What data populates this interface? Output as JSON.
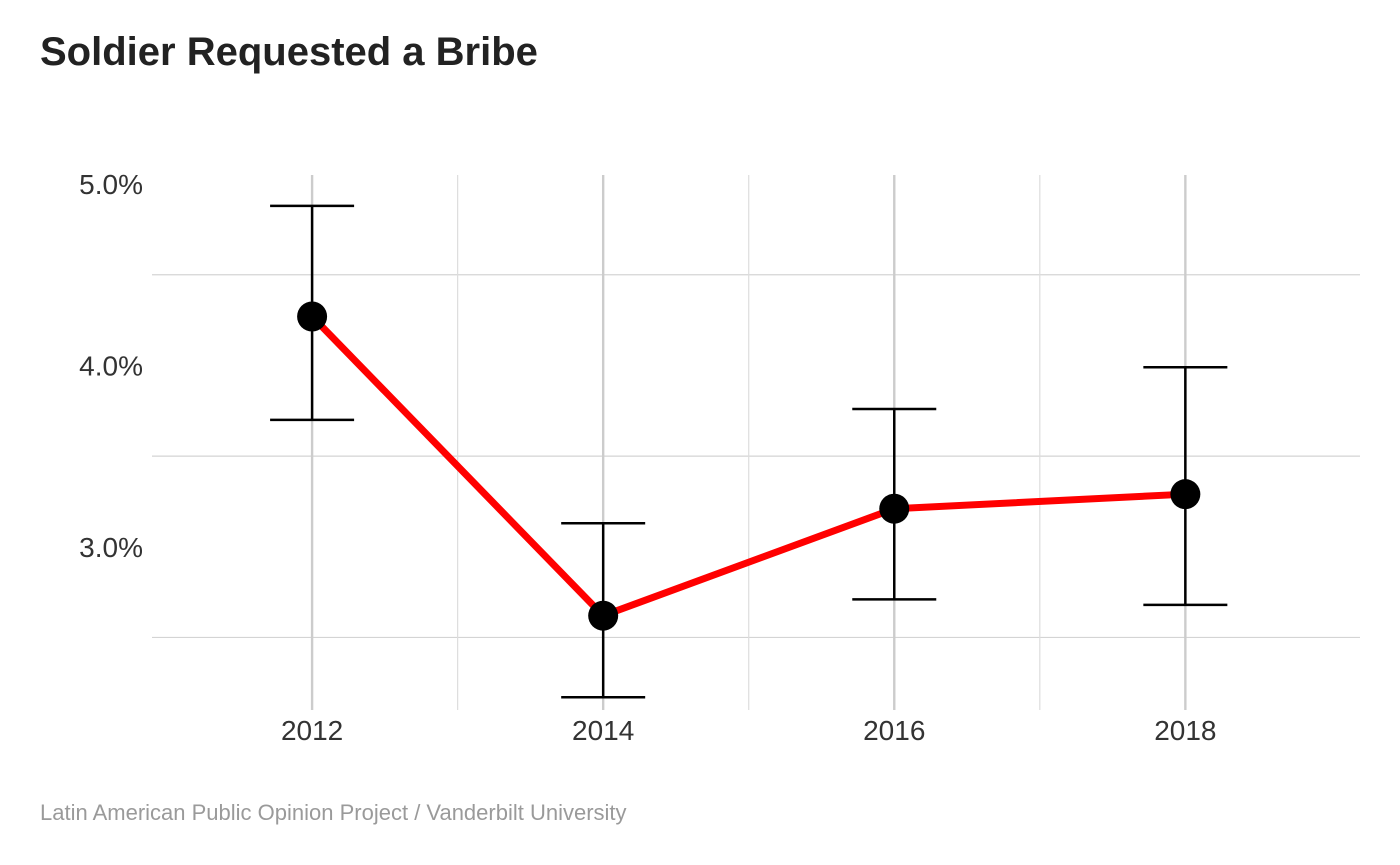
{
  "chart_data": {
    "type": "line",
    "title": "Soldier Requested a Bribe",
    "caption": "Latin American Public Opinion Project / Vanderbilt University",
    "xlabel": "",
    "ylabel": "",
    "x": [
      2012,
      2014,
      2016,
      2018
    ],
    "x_ticks": [
      "2012",
      "2014",
      "2016",
      "2018"
    ],
    "xlim": [
      2010.9,
      2019.2
    ],
    "ylim": [
      2.1,
      5.05
    ],
    "y_ticks": [
      5.0,
      4.0,
      3.0
    ],
    "y_tick_labels": [
      "5.0%",
      "4.0%",
      "3.0%"
    ],
    "y_minor_grid": [
      4.5,
      3.5,
      2.5
    ],
    "series": [
      {
        "values": [
          4.27,
          2.62,
          3.21,
          3.29
        ],
        "lower": [
          3.7,
          2.17,
          2.71,
          2.68
        ],
        "upper": [
          4.88,
          3.13,
          3.76,
          3.99
        ],
        "line_color": "#ff0000",
        "point_color": "#000000"
      }
    ],
    "grid": true,
    "legend": "none"
  }
}
